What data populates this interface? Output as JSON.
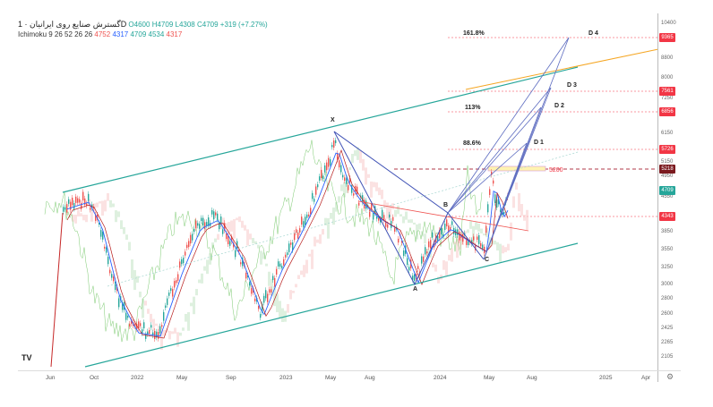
{
  "header": {
    "title": "گسترش صنایع روی ایرانیان · 1D",
    "open": "O4600",
    "high": "H4709",
    "low": "L4308",
    "close": "C4709",
    "change": "+319 (+7.27%)",
    "indicator": "Ichimoku 9 26 52 26 26",
    "ind_values": [
      "4752",
      "4317",
      "4709",
      "4534",
      "4317"
    ]
  },
  "price_axis": {
    "ticks": [
      "10400",
      "8800",
      "8000",
      "7250",
      "6150",
      "5150",
      "4950",
      "4550",
      "3850",
      "3550",
      "3250",
      "3000",
      "2800",
      "2600",
      "2425",
      "2265",
      "2105"
    ],
    "badges": [
      {
        "value": "9365",
        "color": "#f23645"
      },
      {
        "value": "7561",
        "color": "#f23645"
      },
      {
        "value": "6856",
        "color": "#f23645"
      },
      {
        "value": "5726",
        "color": "#f23645"
      },
      {
        "value": "5218",
        "color": "#7b1a1f"
      },
      {
        "value": "4709",
        "color": "#26a69a"
      },
      {
        "value": "4343",
        "color": "#f23645"
      }
    ]
  },
  "time_axis": [
    "Jun",
    "Oct",
    "2022",
    "May",
    "Sep",
    "2023",
    "May",
    "Aug",
    "2024",
    "May",
    "Aug",
    "2025",
    "Apr"
  ],
  "annotations": {
    "fib_1618": "161.8%",
    "fib_113": "113%",
    "fib_886": "88.6%",
    "d4": "D 4",
    "d3": "D 3",
    "d2": "D 2",
    "d1": "D 1",
    "x": "X",
    "a": "A",
    "b": "B",
    "c": "C",
    "level": "5200"
  },
  "logo": "TV",
  "settings_icon": "gear-icon"
}
